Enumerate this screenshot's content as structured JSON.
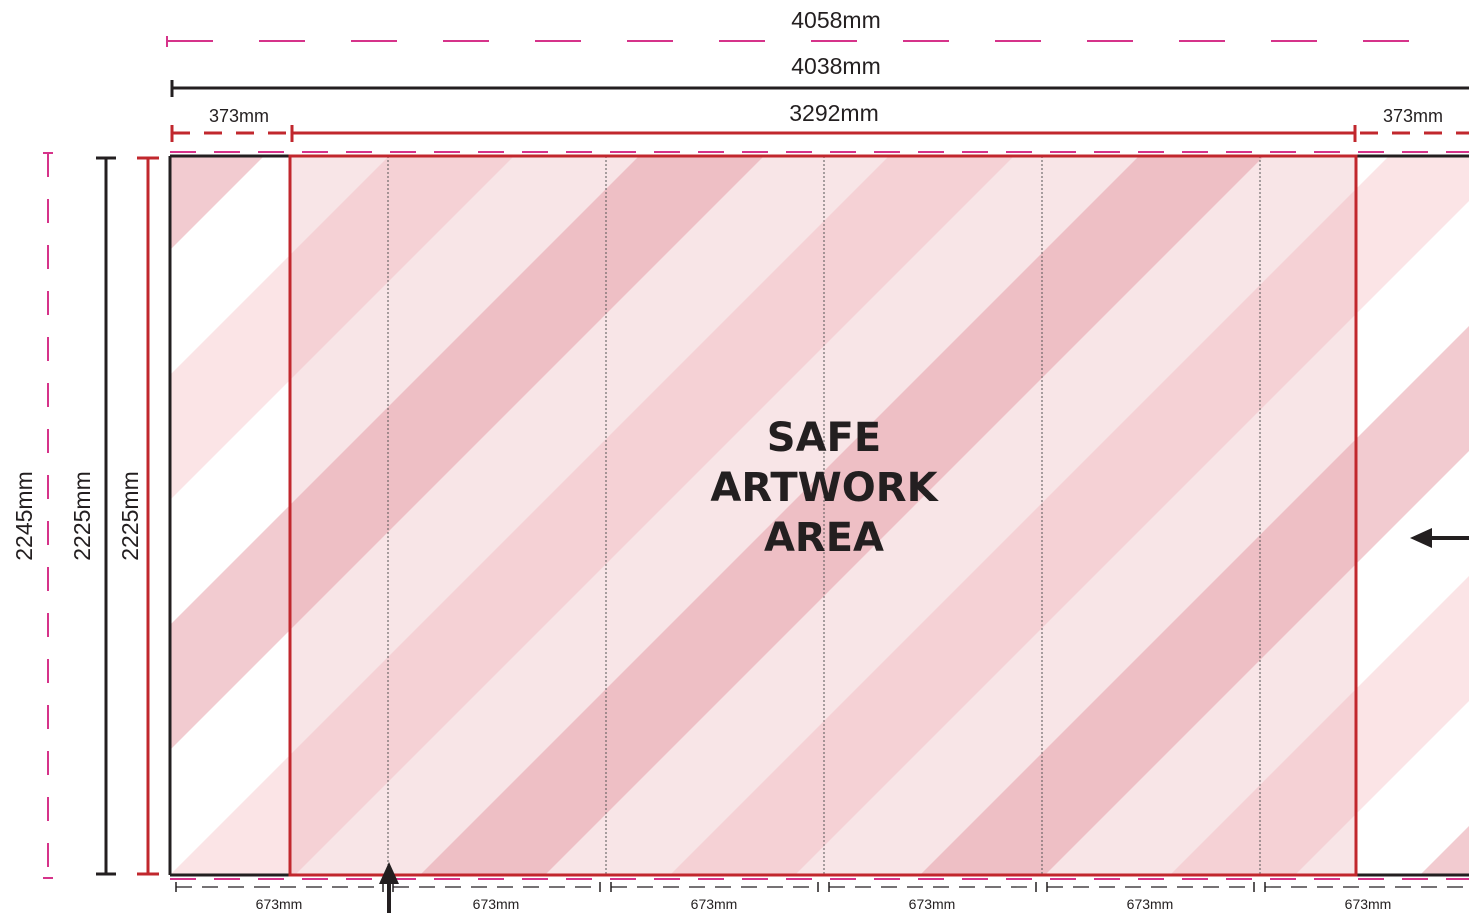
{
  "dimensions": {
    "bleed_width": "4058mm",
    "trim_width": "4038mm",
    "safe_width": "3292mm",
    "return_left": "373mm",
    "return_right": "373mm",
    "bleed_height": "2245mm",
    "trim_height": "2225mm",
    "safe_height": "2225mm",
    "panel_widths": [
      "673mm",
      "673mm",
      "673mm",
      "673mm",
      "673mm",
      "673mm"
    ]
  },
  "safe_area": {
    "lines": [
      "SAFE",
      "ARTWORK",
      "AREA"
    ]
  },
  "colors": {
    "bleed_line": "#d6338a",
    "safe_line": "#c1272d",
    "trim_line": "#231f20",
    "stripe_light": "#fbe4e6",
    "stripe_dark": "#f2cbd0",
    "safe_tint": "#e6a0aa"
  },
  "icons": {
    "bottom_arrow": "arrow-up-icon",
    "right_arrow": "arrow-left-icon"
  }
}
